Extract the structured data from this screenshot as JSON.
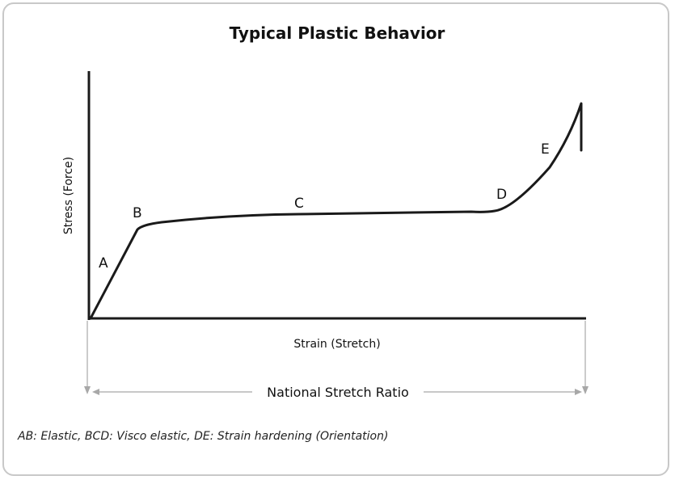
{
  "title": "Typical Plastic Behavior",
  "y_axis_label": "Stress (Force)",
  "x_axis_label": "Strain (Stretch)",
  "ratio_label": "National Stretch Ratio",
  "caption": "AB: Elastic, BCD: Visco elastic, DE: Strain hardening (Orientation)",
  "points": {
    "a": "A",
    "b": "B",
    "c": "C",
    "d": "D",
    "e": "E"
  },
  "colors": {
    "curve": "#1a1a1a",
    "axes": "#1a1a1a",
    "guides": "#a8a8a8",
    "frame": "#c8c8c8"
  }
}
